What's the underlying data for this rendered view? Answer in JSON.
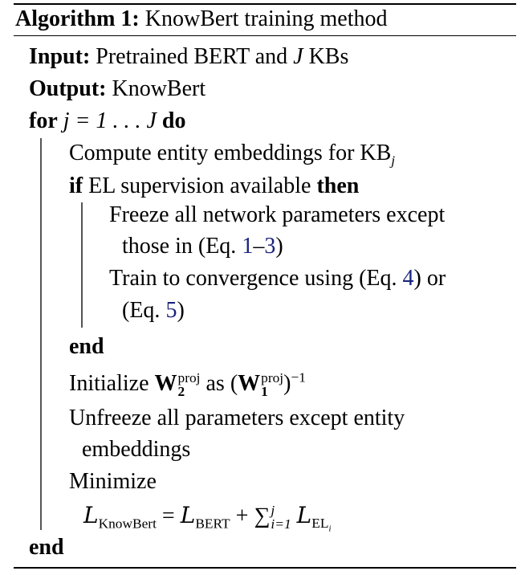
{
  "algorithm": {
    "caption_label": "Algorithm 1:",
    "caption_title": "KnowBert training method",
    "input_label": "Input:",
    "input_text_a": "Pretrained BERT and",
    "input_var": "J",
    "input_text_b": "KBs",
    "output_label": "Output:",
    "output_text": "KnowBert",
    "for_kw": "for",
    "for_expr": "j = 1 . . . J",
    "do_kw": "do",
    "compute_text": "Compute entity embeddings for KB",
    "compute_sub": "j",
    "if_kw": "if",
    "if_cond": "EL supervision available",
    "then_kw": "then",
    "freeze_line1": "Freeze all network parameters except",
    "freeze_line2_a": "those in (Eq.",
    "freeze_ref_a": "1",
    "freeze_dash": "–",
    "freeze_ref_b": "3",
    "freeze_close": ")",
    "train_line1_a": "Train to convergence using (Eq.",
    "train_ref_a": "4",
    "train_line1_b": ") or",
    "train_line2_a": "(Eq.",
    "train_ref_b": "5",
    "train_line2_b": ")",
    "end_inner": "end",
    "init_text": "Initialize",
    "init_w": "W",
    "init_w_sub": "2",
    "init_w_sup": "proj",
    "init_as": "as",
    "init_w2": "W",
    "init_w2_sub": "1",
    "init_w2_sup": "proj",
    "init_exp": "−1",
    "unfreeze_line1": "Unfreeze all parameters except entity",
    "unfreeze_line2": "embeddings",
    "minimize_text": "Minimize",
    "loss_L": "L",
    "loss_knowbert_sub": "KnowBert",
    "loss_eq": "=",
    "loss_bert_sub": "BERT",
    "loss_plus": "+",
    "loss_sum": "∑",
    "loss_sum_sup": "j",
    "loss_sum_sub": "i=1",
    "loss_el_sub": "EL",
    "loss_el_subsub": "i",
    "end_outer": "end"
  }
}
